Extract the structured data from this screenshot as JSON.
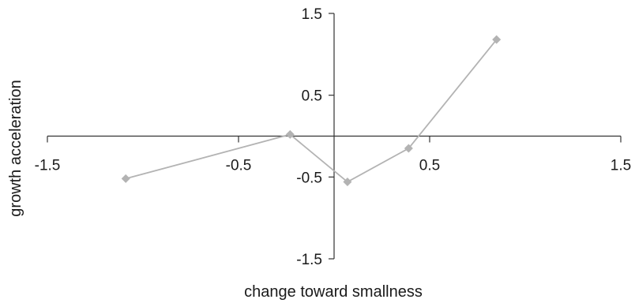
{
  "chart_data": {
    "type": "line",
    "title": "",
    "xlabel": "change toward smallness",
    "ylabel": "growth acceleration",
    "xlim": [
      -1.5,
      1.5
    ],
    "ylim": [
      -1.5,
      1.5
    ],
    "x_ticks": [
      -1.5,
      -0.5,
      0.5,
      1.5
    ],
    "y_ticks": [
      1.5,
      0.5,
      -0.5,
      -1.5
    ],
    "x_tick_labels": [
      "-1.5",
      "-0.5",
      "0.5",
      "1.5"
    ],
    "y_tick_labels": [
      "1.5",
      "0.5",
      "-0.5",
      "-1.5"
    ],
    "grid": false,
    "legend": "none",
    "series": [
      {
        "x": [
          -1.09,
          -0.23,
          0.07,
          0.39,
          0.85
        ],
        "y": [
          -0.52,
          0.02,
          -0.56,
          -0.15,
          1.18
        ],
        "color": "#b3b3b3",
        "marker": "diamond"
      }
    ]
  }
}
